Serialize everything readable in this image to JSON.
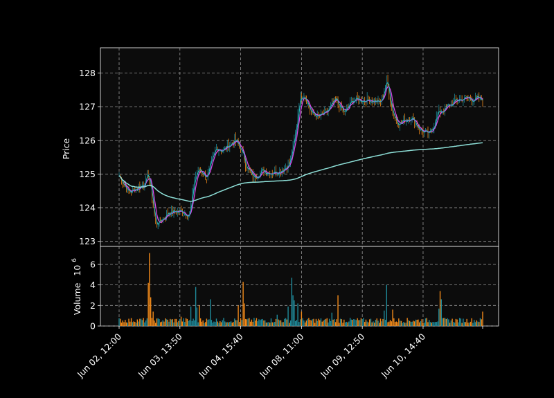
{
  "chart_data": {
    "type": "candlestick_with_volume",
    "ylabel": "Price",
    "volume_label": "Volume",
    "volume_exponent_base": "10",
    "volume_exponent": "6",
    "price_ylim": [
      122.85,
      128.75
    ],
    "price_ticks": [
      "123",
      "124",
      "125",
      "126",
      "127",
      "128"
    ],
    "volume_ylim": [
      0,
      7.75
    ],
    "volume_ticks": [
      "0",
      "2",
      "4",
      "6"
    ],
    "x_tick_labels": [
      "Jun 02, 12:00",
      "Jun 03, 13:50",
      "Jun 04, 15:40",
      "Jun 08, 11:00",
      "Jun 09, 12:50",
      "Jun 10, 14:40"
    ],
    "x_tick_bar_index": [
      0,
      50,
      100,
      150,
      200,
      250
    ],
    "num_bars": 300,
    "price_anchors": [
      [
        0,
        124.95
      ],
      [
        8,
        124.45
      ],
      [
        20,
        124.7
      ],
      [
        24,
        125.0
      ],
      [
        27,
        124.3
      ],
      [
        30,
        123.5
      ],
      [
        35,
        123.65
      ],
      [
        40,
        123.85
      ],
      [
        50,
        123.9
      ],
      [
        58,
        123.8
      ],
      [
        62,
        124.9
      ],
      [
        66,
        125.15
      ],
      [
        72,
        124.9
      ],
      [
        80,
        125.8
      ],
      [
        85,
        125.7
      ],
      [
        95,
        126.0
      ],
      [
        100,
        125.75
      ],
      [
        105,
        125.2
      ],
      [
        110,
        124.9
      ],
      [
        118,
        125.1
      ],
      [
        124,
        125.05
      ],
      [
        132,
        125.1
      ],
      [
        140,
        125.3
      ],
      [
        145,
        126.2
      ],
      [
        148,
        127.2
      ],
      [
        152,
        127.4
      ],
      [
        158,
        126.8
      ],
      [
        164,
        126.7
      ],
      [
        170,
        126.8
      ],
      [
        178,
        127.2
      ],
      [
        185,
        126.8
      ],
      [
        192,
        127.2
      ],
      [
        200,
        127.2
      ],
      [
        208,
        127.2
      ],
      [
        215,
        127.1
      ],
      [
        220,
        127.8
      ],
      [
        225,
        126.8
      ],
      [
        230,
        126.5
      ],
      [
        240,
        126.7
      ],
      [
        248,
        126.3
      ],
      [
        255,
        126.15
      ],
      [
        262,
        126.8
      ],
      [
        270,
        127.0
      ],
      [
        278,
        127.2
      ],
      [
        285,
        127.25
      ],
      [
        299,
        127.2
      ]
    ],
    "ma_colors": [
      "#d846e8",
      "#27b3b8"
    ],
    "vwap_color": "#8ee0d8",
    "up_color": "#1f8a9a",
    "down_color": "#f28a1a",
    "volume_spikes": [
      [
        24,
        4.2
      ],
      [
        25,
        7.1
      ],
      [
        26,
        2.8
      ],
      [
        28,
        1.4
      ],
      [
        51,
        0.9
      ],
      [
        59,
        1.9
      ],
      [
        63,
        3.8
      ],
      [
        64,
        1.8
      ],
      [
        66,
        2.0
      ],
      [
        75,
        2.6
      ],
      [
        98,
        2.0
      ],
      [
        102,
        4.3
      ],
      [
        103,
        2.2
      ],
      [
        130,
        1.1
      ],
      [
        139,
        1.9
      ],
      [
        142,
        4.7
      ],
      [
        143,
        3.0
      ],
      [
        144,
        2.5
      ],
      [
        147,
        2.2
      ],
      [
        150,
        1.4
      ],
      [
        175,
        1.3
      ],
      [
        180,
        3.0
      ],
      [
        218,
        1.5
      ],
      [
        220,
        4.0
      ],
      [
        225,
        1.6
      ],
      [
        263,
        1.7
      ],
      [
        264,
        3.4
      ],
      [
        265,
        2.6
      ],
      [
        299,
        1.4
      ]
    ],
    "grid": "on"
  }
}
